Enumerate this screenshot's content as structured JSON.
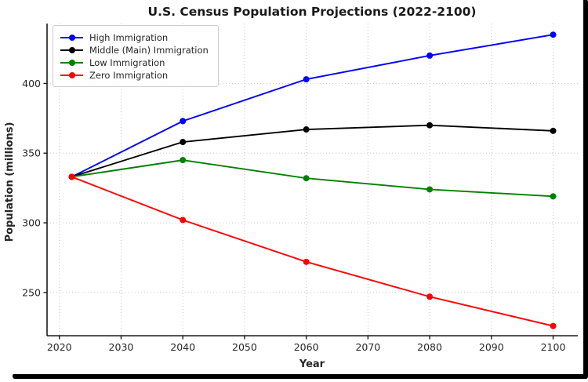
{
  "frame": {
    "border_color": "#000000",
    "background": "#ffffff"
  },
  "chart_data": {
    "type": "line",
    "title": "U.S. Census Population Projections (2022-2100)",
    "xlabel": "Year",
    "ylabel": "Population (millions)",
    "x": [
      2022,
      2040,
      2060,
      2080,
      2100
    ],
    "series": [
      {
        "name": "High Immigration",
        "color": "#0000ff",
        "values": [
          333,
          373,
          403,
          420,
          435
        ]
      },
      {
        "name": "Middle (Main) Immigration",
        "color": "#000000",
        "values": [
          333,
          358,
          367,
          370,
          366
        ]
      },
      {
        "name": "Low Immigration",
        "color": "#008000",
        "values": [
          333,
          345,
          332,
          324,
          319
        ]
      },
      {
        "name": "Zero Immigration",
        "color": "#ff0000",
        "values": [
          333,
          302,
          272,
          247,
          226
        ]
      }
    ],
    "x_ticks": [
      2020,
      2030,
      2040,
      2050,
      2060,
      2070,
      2080,
      2090,
      2100
    ],
    "y_ticks": [
      250,
      300,
      350,
      400
    ],
    "xlim": [
      2018,
      2104
    ],
    "ylim": [
      219,
      443
    ],
    "grid": "dotted",
    "grid_color": "#c8c8c8",
    "axis_color": "#1a1a1a",
    "text_color": "#262626",
    "legend_position": "top-left",
    "marker": "circle"
  }
}
